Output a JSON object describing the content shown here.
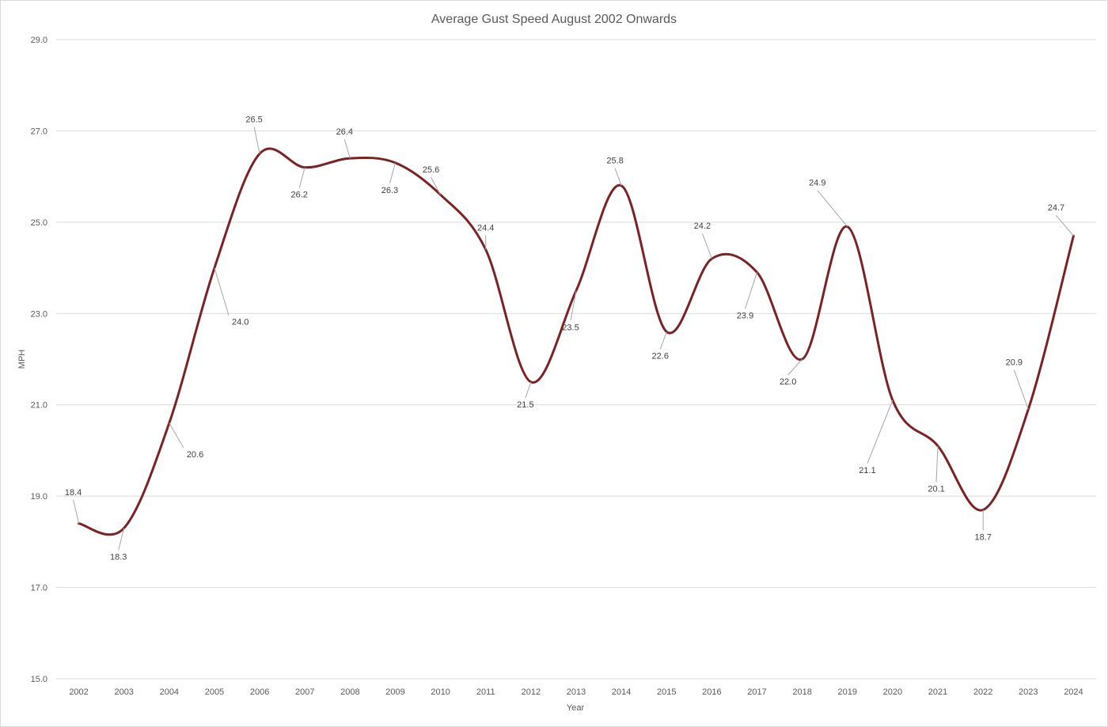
{
  "chart_data": {
    "type": "line",
    "title": "Average Gust Speed August 2002 Onwards",
    "xlabel": "Year",
    "ylabel": "MPH",
    "ylim": [
      15.0,
      29.0
    ],
    "yticks": [
      "15.0",
      "17.0",
      "19.0",
      "21.0",
      "23.0",
      "25.0",
      "27.0",
      "29.0"
    ],
    "grid": true,
    "legend": "none",
    "smoothed": true,
    "categories": [
      "2002",
      "2003",
      "2004",
      "2005",
      "2006",
      "2007",
      "2008",
      "2009",
      "2010",
      "2011",
      "2012",
      "2013",
      "2014",
      "2015",
      "2016",
      "2017",
      "2018",
      "2019",
      "2020",
      "2021",
      "2022",
      "2023",
      "2024"
    ],
    "series": [
      {
        "color": "#7b2224",
        "values": [
          18.4,
          18.3,
          20.6,
          24.0,
          26.5,
          26.2,
          26.4,
          26.3,
          25.6,
          24.4,
          21.5,
          23.5,
          25.8,
          22.6,
          24.2,
          23.9,
          22.0,
          24.9,
          21.1,
          20.1,
          18.7,
          20.9,
          24.7
        ]
      }
    ],
    "data_labels": [
      "18.4",
      "18.3",
      "20.6",
      "24.0",
      "26.5",
      "26.2",
      "26.4",
      "26.3",
      "25.6",
      "24.4",
      "21.5",
      "23.5",
      "25.8",
      "22.6",
      "24.2",
      "23.9",
      "22.0",
      "24.9",
      "21.1",
      "20.1",
      "18.7",
      "20.9",
      "24.7"
    ]
  }
}
